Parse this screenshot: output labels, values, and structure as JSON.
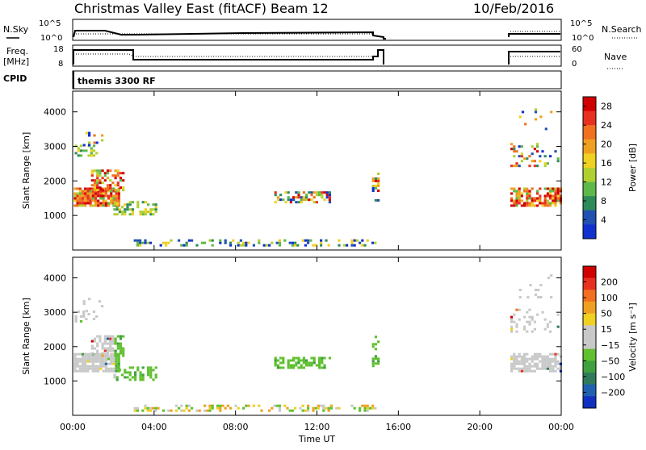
{
  "header": {
    "title": "Christmas Valley East (fitACF)",
    "beam": "Beam 12",
    "date": "10/Feb/2016"
  },
  "params": {
    "nsky_label": "N.Sky",
    "nsearch_label": "N.Search",
    "freq_label_1": "Freq.",
    "freq_label_2": "[MHz]",
    "nave_label": "Nave",
    "cpid_label": "CPID",
    "cpid_value": "themis 3300 RF",
    "nsky_ticks": [
      "10^5",
      "10^0"
    ],
    "nsearch_ticks": [
      "10^5",
      "10^0"
    ],
    "freq_ticks": [
      "18",
      "8"
    ],
    "nave_ticks": [
      "60",
      "0"
    ]
  },
  "chart_data": [
    {
      "type": "heatmap",
      "name": "power-panel",
      "ylabel": "Slant Range [km]",
      "yticks": [
        "1000",
        "2000",
        "3000",
        "4000"
      ],
      "xticks": [
        "00:00",
        "04:00",
        "08:00",
        "12:00",
        "16:00",
        "20:00",
        "00:00"
      ],
      "colorbar": {
        "label": "Power [dB]",
        "ticks": [
          "4",
          "8",
          "12",
          "16",
          "20",
          "24",
          "28"
        ],
        "colors": [
          "#1030d0",
          "#2050b0",
          "#2f8a5a",
          "#5fb84a",
          "#b0d030",
          "#f0d020",
          "#f0a020",
          "#f07020",
          "#e83020",
          "#d00000"
        ]
      }
    },
    {
      "type": "heatmap",
      "name": "velocity-panel",
      "ylabel": "Slant Range [km]",
      "yticks": [
        "1000",
        "2000",
        "3000",
        "4000"
      ],
      "xticks": [
        "00:00",
        "04:00",
        "08:00",
        "12:00",
        "16:00",
        "20:00",
        "00:00"
      ],
      "xlabel": "Time UT",
      "colorbar": {
        "label": "Velocity [m s⁻¹]",
        "ticks": [
          "200",
          "100",
          "50",
          "15",
          "−15",
          "−50",
          "−100",
          "−200"
        ],
        "colors": [
          "#1030c0",
          "#2060b0",
          "#2f7a5a",
          "#40a040",
          "#60c030",
          "#c8c8c8",
          "#c8c8c8",
          "#f0d020",
          "#f0a020",
          "#f07020",
          "#e83020",
          "#d00000"
        ]
      }
    }
  ]
}
